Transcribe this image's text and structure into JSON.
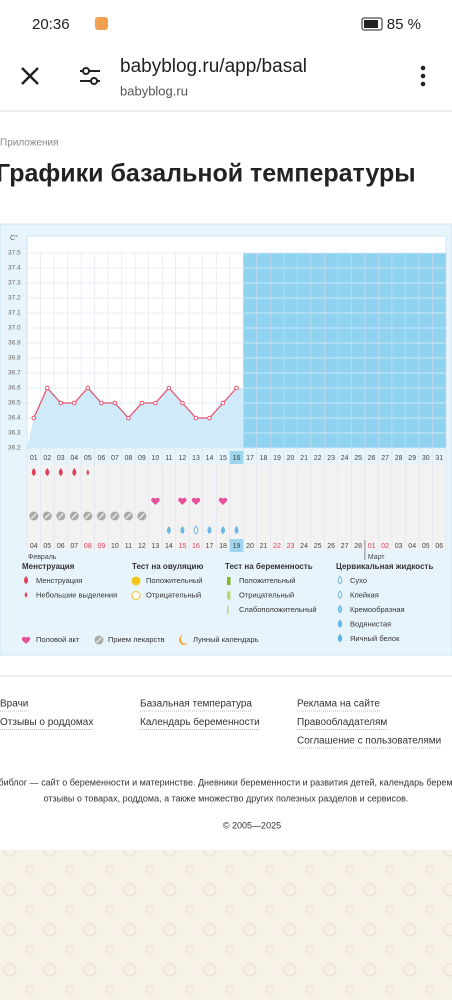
{
  "status": {
    "time": "20:36",
    "battery": "85 %"
  },
  "browser": {
    "url": "babyblog.ru/app/basal",
    "host": "babyblog.ru"
  },
  "breadcrumb": "Приложения",
  "title": "Графики базальной температуры",
  "chart_data": {
    "type": "line",
    "y_unit": "С°",
    "categories": [
      "01",
      "02",
      "03",
      "04",
      "05",
      "06",
      "07",
      "08",
      "09",
      "10",
      "11",
      "12",
      "13",
      "14",
      "15",
      "16",
      "17",
      "18",
      "19",
      "20",
      "21",
      "22",
      "23",
      "24",
      "25",
      "26",
      "27",
      "28",
      "29",
      "30",
      "31"
    ],
    "values": [
      36.4,
      36.6,
      36.5,
      36.5,
      36.6,
      36.5,
      36.5,
      36.4,
      36.5,
      36.5,
      36.6,
      36.5,
      36.4,
      36.4,
      36.5,
      36.6,
      null,
      null,
      null,
      null,
      null,
      null,
      null,
      null,
      null,
      null,
      null,
      null,
      null,
      null,
      null
    ],
    "ylim": [
      36.2,
      37.5
    ],
    "yticks": [
      36.2,
      36.3,
      36.4,
      36.5,
      36.6,
      36.7,
      36.8,
      36.9,
      {
        "value": 37,
        "label": "37.0"
      },
      37.1,
      37.2,
      37.3,
      37.4,
      37.5
    ],
    "color": "#e8546e",
    "dates": [
      "04",
      "05",
      "06",
      "07",
      "08",
      "09",
      "10",
      "11",
      "12",
      "13",
      "14",
      "15",
      "16",
      "17",
      "18",
      "19",
      "20",
      "21",
      "22",
      "23",
      "24",
      "25",
      "26",
      "27",
      "28",
      "01",
      "02",
      "03",
      "04",
      "05",
      "06"
    ],
    "months": [
      "Февраль",
      "Март"
    ]
  },
  "legend": [
    {
      "title": "Менструация",
      "items": [
        "Менструация",
        "Небольшие выделения"
      ]
    },
    {
      "title": "Тест на овуляцию",
      "items": [
        "Положительный",
        "Отрицательный"
      ]
    },
    {
      "title": "Тест на беременность",
      "items": [
        "Положительный",
        "Отрицательный",
        "Слабоположительный"
      ]
    },
    {
      "title": "Цервикальная жидкость",
      "items": [
        "Сухо",
        "Клейкая",
        "Кремообразная",
        "Водянистая",
        "Яичный белок"
      ]
    }
  ],
  "legend_bottom": [
    "Половой акт",
    "Прием лекарств",
    "Лунный календарь"
  ],
  "footer": {
    "links": [
      [
        "Врачи",
        "Отзывы о роддомах"
      ],
      [
        "Базальная температура",
        "Календарь беременности"
      ],
      [
        "Реклама на сайте",
        "Правообладателям",
        "Соглашение с пользователями"
      ]
    ],
    "about": [
      "Бэбиблог — сайт о беременности и материнстве. Дневники беременности и развития детей, календарь беременности,",
      "отзывы о товарах, роддома, а также множество других полезных разделов и сервисов.",
      "© 2005—2025"
    ]
  }
}
